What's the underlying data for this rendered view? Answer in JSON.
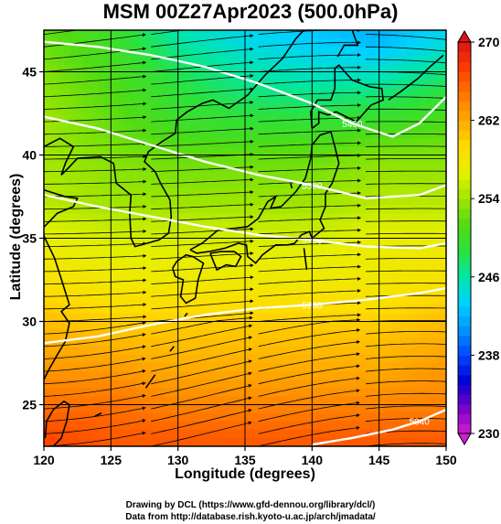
{
  "title": "MSM 00Z27Apr2023 (500.0hPa)",
  "xlabel": "Longitude (degrees)",
  "ylabel": "Latitude  (degrees)",
  "x_ticks": [
    120,
    125,
    130,
    135,
    140,
    145,
    150
  ],
  "y_ticks": [
    25,
    30,
    35,
    40,
    45
  ],
  "colorbar": {
    "ticks": [
      230,
      238,
      246,
      254,
      262,
      270
    ],
    "min": 230,
    "max": 270,
    "colors": [
      "#d21ed2",
      "#7800c8",
      "#0000d2",
      "#0046ff",
      "#0096ff",
      "#00d2ff",
      "#00e6aa",
      "#2de13c",
      "#50dc14",
      "#a0e600",
      "#e6f000",
      "#ffdc00",
      "#ffaa00",
      "#ff7800",
      "#ff3c00",
      "#dc1414"
    ]
  },
  "contour_labels": [
    "5700",
    "5580",
    "5460"
  ],
  "credits": {
    "line1": "Drawing by DCL (https://www.gfd-dennou.org/library/dcl/)",
    "line2": "Data from http://database.rish.kyoto-u.ac.jp/arch/jmadata/"
  },
  "chart_data": {
    "type": "heatmap",
    "title": "MSM 00Z27Apr2023 (500.0hPa)",
    "xlabel": "Longitude (degrees)",
    "ylabel": "Latitude  (degrees)",
    "xlim": [
      120,
      150
    ],
    "ylim": [
      22.5,
      47.5
    ],
    "grid": true,
    "variable_range": [
      230,
      270
    ],
    "temperature_field": {
      "lat": [
        47,
        45,
        42,
        40,
        37,
        35,
        32,
        30,
        27,
        25,
        23
      ],
      "lon": [
        120,
        125,
        130,
        135,
        140,
        145,
        150
      ],
      "values": [
        [
          252,
          250,
          246,
          244,
          243,
          242,
          244
        ],
        [
          253,
          251,
          248,
          246,
          245,
          245,
          247
        ],
        [
          254,
          252,
          250,
          249,
          249,
          250,
          251
        ],
        [
          254,
          253,
          252,
          252,
          252,
          253,
          253
        ],
        [
          255,
          254,
          254,
          254,
          254,
          255,
          255
        ],
        [
          257,
          256,
          256,
          256,
          256,
          257,
          257
        ],
        [
          259,
          258,
          258,
          258,
          258,
          258,
          259
        ],
        [
          261,
          260,
          260,
          260,
          260,
          260,
          261
        ],
        [
          263,
          263,
          262,
          262,
          262,
          262,
          263
        ],
        [
          265,
          265,
          264,
          264,
          264,
          264,
          264
        ],
        [
          267,
          266,
          266,
          266,
          266,
          266,
          266
        ]
      ]
    },
    "height_contours": [
      {
        "label": "5460",
        "lon": [
          120,
          124,
          128,
          132,
          136,
          140,
          143,
          146,
          148,
          150
        ],
        "lat": [
          46.8,
          46.5,
          46.0,
          45.3,
          44.3,
          43.1,
          41.9,
          41.1,
          41.9,
          43.5
        ]
      },
      {
        "label": "5580",
        "lon": [
          120,
          124,
          128,
          132,
          136,
          140,
          144,
          148,
          150
        ],
        "lat": [
          42.3,
          41.6,
          40.6,
          39.6,
          38.8,
          38.2,
          37.4,
          37.6,
          38.2
        ]
      },
      {
        "label": "5700",
        "lon": [
          120,
          124,
          128,
          132,
          136,
          140,
          144,
          148,
          150
        ],
        "lat": [
          37.6,
          36.9,
          36.3,
          35.7,
          35.2,
          34.9,
          34.5,
          34.4,
          34.7
        ]
      },
      {
        "label": "5700",
        "lon": [
          120,
          124,
          128,
          132,
          136,
          140,
          144,
          148,
          150
        ],
        "lat": [
          28.7,
          29.1,
          29.8,
          30.4,
          30.8,
          31.0,
          31.3,
          31.7,
          32.0
        ]
      },
      {
        "label": "5940",
        "lon": [
          140,
          143,
          146,
          148,
          150
        ],
        "lat": [
          22.6,
          23.0,
          23.5,
          24.0,
          24.7
        ]
      }
    ],
    "wind_field": {
      "type": "streamlines",
      "prevailing": "westerly",
      "speed_range": "strongest near 35-40N"
    }
  }
}
